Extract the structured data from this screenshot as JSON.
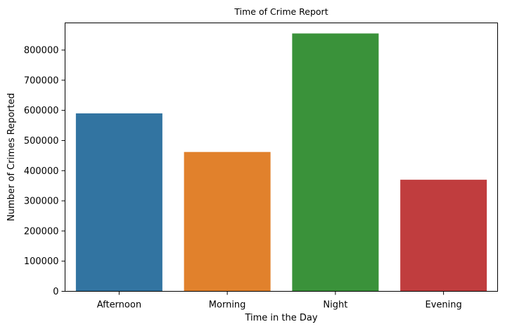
{
  "chart_data": {
    "type": "bar",
    "title": "Time of Crime Report",
    "xlabel": "Time in the Day",
    "ylabel": "Number of Crimes Reported",
    "categories": [
      "Afternoon",
      "Morning",
      "Night",
      "Evening"
    ],
    "values": [
      590000,
      462000,
      855000,
      370000
    ],
    "colors": [
      "#3274a1",
      "#e1812c",
      "#3a923a",
      "#c03d3e"
    ],
    "ylim": [
      0,
      890000
    ],
    "yticks": [
      0,
      100000,
      200000,
      300000,
      400000,
      500000,
      600000,
      700000,
      800000
    ],
    "ytick_labels": [
      "0",
      "100000",
      "200000",
      "300000",
      "400000",
      "500000",
      "600000",
      "700000",
      "800000"
    ],
    "grid": false,
    "legend": "none"
  }
}
